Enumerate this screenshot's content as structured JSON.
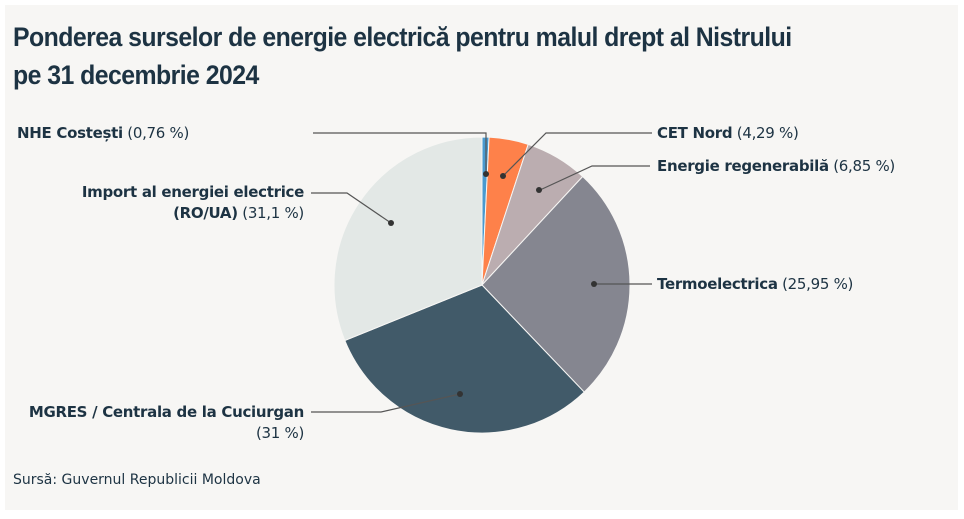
{
  "title_line1": "Ponderea surselor de energie electrică pentru malul drept al Nistrului",
  "title_line2": "pe 31 decembrie 2024",
  "source": "Sursă: Guvernul Republicii Moldova",
  "chart_data": {
    "type": "pie",
    "title": "Ponderea surselor de energie electrică pentru malul drept al Nistrului pe 31 decembrie 2024",
    "start": "top (12 o'clock), clockwise",
    "slices": [
      {
        "name": "NHE Costești",
        "value": 0.76,
        "value_label": "(0,76 %)",
        "color": "#4a9ad0"
      },
      {
        "name": "CET Nord",
        "value": 4.29,
        "value_label": "(4,29 %)",
        "color": "#fe814a"
      },
      {
        "name": "Energie regenerabilă",
        "value": 6.85,
        "value_label": "(6,85 %)",
        "color": "#bbadb0"
      },
      {
        "name": "Termoelectrica",
        "value": 25.95,
        "value_label": "(25,95 %)",
        "color": "#858690"
      },
      {
        "name": "MGRES / Centrala de la Cuciurgan",
        "value": 31,
        "value_label": "(31 %)",
        "color": "#415a69"
      },
      {
        "name": "Import al energiei electrice (RO/UA)",
        "value": 31.1,
        "value_label": "(31,1 %)",
        "color": "#e3e8e6"
      }
    ]
  },
  "labels": {
    "nhe": {
      "name": "NHE Costești",
      "pct": "(0,76 %)"
    },
    "import": {
      "name1": "Import al energiei electrice",
      "name2": "(RO/UA)",
      "pct": "(31,1 %)"
    },
    "cet": {
      "name": "CET Nord",
      "pct": "(4,29 %)"
    },
    "reg": {
      "name": "Energie regenerabilă",
      "pct": "(6,85 %)"
    },
    "termo": {
      "name": "Termoelectrica",
      "pct": "(25,95 %)"
    },
    "mgres": {
      "name": "MGRES / Centrala de la Cuciurgan",
      "pct": "(31 %)"
    }
  }
}
